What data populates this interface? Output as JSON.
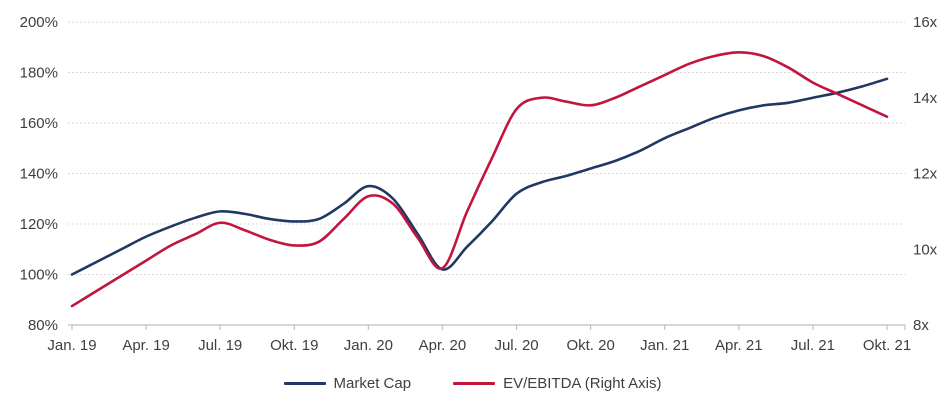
{
  "chart_data": {
    "type": "line",
    "title": "",
    "categories": [
      "Jan. 19",
      "Feb. 19",
      "Mär. 19",
      "Apr. 19",
      "Mai 19",
      "Jun. 19",
      "Jul. 19",
      "Aug. 19",
      "Sep. 19",
      "Okt. 19",
      "Nov. 19",
      "Dez. 19",
      "Jan. 20",
      "Feb. 20",
      "Mär. 20",
      "Apr. 20",
      "Mai 20",
      "Jun. 20",
      "Jul. 20",
      "Aug. 20",
      "Sep. 20",
      "Okt. 20",
      "Nov. 20",
      "Dez. 20",
      "Jan. 21",
      "Feb. 21",
      "Mär. 21",
      "Apr. 21",
      "Mai 21",
      "Jun. 21",
      "Jul. 21",
      "Aug. 21",
      "Sep. 21",
      "Okt. 21"
    ],
    "x_tick_labels": [
      "Jan. 19",
      "Apr. 19",
      "Jul. 19",
      "Okt. 19",
      "Jan. 20",
      "Apr. 20",
      "Jul. 20",
      "Okt. 20",
      "Jan. 21",
      "Apr. 21",
      "Jul. 21",
      "Okt. 21"
    ],
    "x_tick_month_indices": [
      0,
      3,
      6,
      9,
      12,
      15,
      18,
      21,
      24,
      27,
      30,
      33
    ],
    "series": [
      {
        "name": "Market Cap",
        "axis": "left",
        "unit": "%",
        "color": "#1F3864",
        "values": [
          100,
          105,
          110,
          115,
          119,
          122.5,
          125,
          124,
          122,
          121,
          122,
          128,
          135,
          130,
          116,
          102,
          111,
          121,
          132,
          136.5,
          139,
          142,
          145,
          149,
          154,
          158,
          162,
          165,
          167,
          168,
          170,
          172,
          174.5,
          177.5
        ]
      },
      {
        "name": "EV/EBITDA (Right Axis)",
        "axis": "right",
        "unit": "x",
        "color": "#C1153D",
        "values": [
          8.5,
          8.9,
          9.3,
          9.7,
          10.1,
          10.4,
          10.7,
          10.5,
          10.25,
          10.1,
          10.2,
          10.8,
          11.4,
          11.2,
          10.3,
          9.5,
          11.0,
          12.4,
          13.7,
          14.0,
          13.9,
          13.8,
          14.0,
          14.3,
          14.6,
          14.9,
          15.1,
          15.2,
          15.1,
          14.8,
          14.4,
          14.1,
          13.8,
          13.5
        ]
      }
    ],
    "left_axis": {
      "min": 80,
      "max": 200,
      "step": 20,
      "format": "percent",
      "tick_labels": [
        "200%",
        "180%",
        "160%",
        "140%",
        "120%",
        "100%",
        "80%"
      ]
    },
    "right_axis": {
      "min": 8,
      "max": 16,
      "step": 2,
      "format": "multiple",
      "tick_labels": [
        "16x",
        "14x",
        "12x",
        "10x",
        "8x"
      ]
    },
    "grid": "horizontal-dashed",
    "legend_position": "bottom-center"
  },
  "colors": {
    "market_cap": "#1F3864",
    "ev_ebitda": "#C1153D",
    "grid": "#D9D9D9",
    "axis": "#BFBFBF",
    "label": "#3F3F3F",
    "background": "#FFFFFF"
  }
}
